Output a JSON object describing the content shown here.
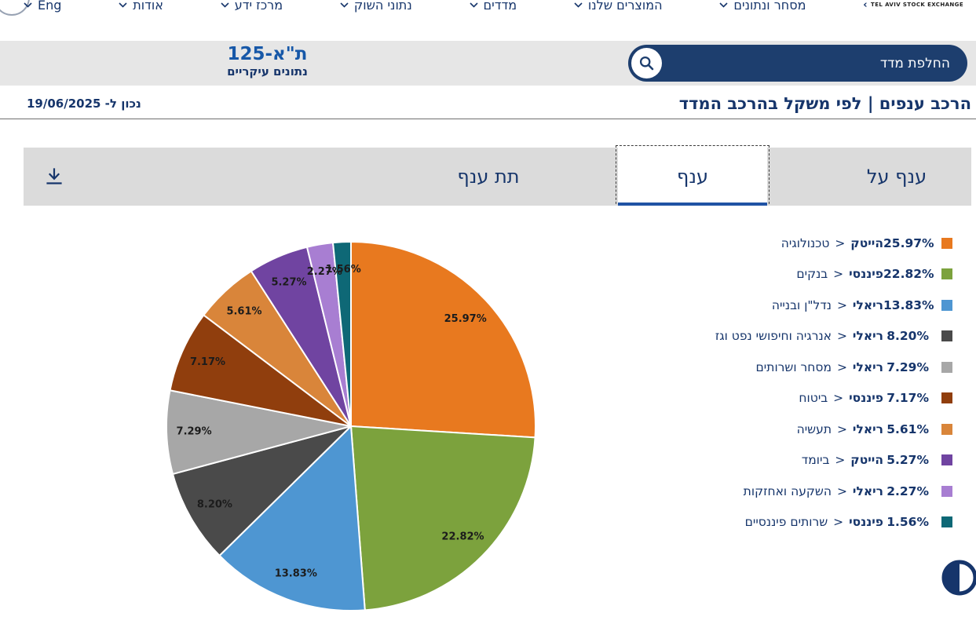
{
  "nav": {
    "logo": "TEL AVIV STOCK EXCHANGE",
    "logo_arrow": "›",
    "items": [
      {
        "label": "מסחר ונתונים"
      },
      {
        "label": "המוצרים שלנו"
      },
      {
        "label": "מדדים"
      },
      {
        "label": "נתוני השוק"
      },
      {
        "label": "מרכז ידע"
      },
      {
        "label": "אודות"
      },
      {
        "label": "Eng"
      }
    ]
  },
  "index_bar": {
    "search_label": "החלפת מדד",
    "index_name": "ת\"א-125",
    "index_subtitle": "נתונים עיקריים"
  },
  "page_header": {
    "title": "הרכב ענפים | לפי משקל בהרכב המדד",
    "as_of": "נכון ל- 19/06/2025"
  },
  "tabs": [
    {
      "label": "ענף על",
      "selected": false
    },
    {
      "label": "ענף",
      "selected": true
    },
    {
      "label": "תת ענף",
      "selected": false
    }
  ],
  "legend_sep": "<",
  "colors": {
    "navy": "#16356B",
    "title_blue": "#1758A8",
    "pill_navy": "#1D3E6E",
    "tab_underline": "#2053A4"
  },
  "chart_data": {
    "type": "pie",
    "title": "הרכב ענפים לפי משקל בהרכב המדד",
    "legend_position": "right",
    "slices": [
      {
        "label": "הייטק",
        "sub": "טכנולוגיה",
        "value": 25.97,
        "pct": "25.97%",
        "color": "#E8791F"
      },
      {
        "label": "פיננסי",
        "sub": "בנקים",
        "value": 22.82,
        "pct": "22.82%",
        "color": "#7CA23D"
      },
      {
        "label": "ריאלי",
        "sub": "נדל\"ן ובנייה",
        "value": 13.83,
        "pct": "13.83%",
        "color": "#4E96D2"
      },
      {
        "label": "ריאלי",
        "sub": "אנרגיה וחיפושי נפט וגז",
        "value": 8.2,
        "pct": "8.20%",
        "color": "#4A4A4A"
      },
      {
        "label": "ריאלי",
        "sub": "מסחר ושרותים",
        "value": 7.29,
        "pct": "7.29%",
        "color": "#A7A7A7"
      },
      {
        "label": "פיננסי",
        "sub": "ביטוח",
        "value": 7.17,
        "pct": "7.17%",
        "color": "#903E0D"
      },
      {
        "label": "ריאלי",
        "sub": "תעשיה",
        "value": 5.61,
        "pct": "5.61%",
        "color": "#D9853A"
      },
      {
        "label": "הייטק",
        "sub": "ביומד",
        "value": 5.27,
        "pct": "5.27%",
        "color": "#7044A1"
      },
      {
        "label": "ריאלי",
        "sub": "השקעה ואחזקות",
        "value": 2.27,
        "pct": "2.27%",
        "color": "#A87ED2"
      },
      {
        "label": "פיננסי",
        "sub": "שרותים פיננסיים",
        "value": 1.56,
        "pct": "1.56%",
        "color": "#0E6876"
      }
    ]
  }
}
